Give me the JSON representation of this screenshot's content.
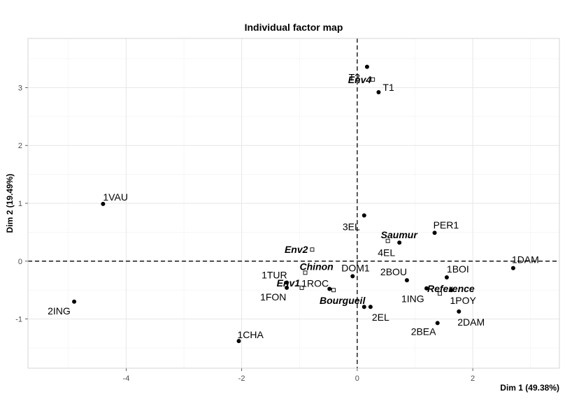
{
  "chart_data": {
    "type": "scatter",
    "title": "Individual factor map",
    "xlabel": "Dim 1 (49.38%)",
    "ylabel": "Dim 2 (19.49%)",
    "xlim": [
      -5.7,
      3.5
    ],
    "ylim": [
      -1.85,
      3.85
    ],
    "x_ticks": [
      -4,
      -2,
      0,
      2
    ],
    "x_tick_labels": [
      "-4",
      "-2",
      "0",
      "2"
    ],
    "y_ticks": [
      -1,
      0,
      1,
      2,
      3
    ],
    "y_tick_labels": [
      "-1",
      "0",
      "1",
      "2",
      "3"
    ],
    "grid": true,
    "reference_lines": {
      "x": 0,
      "y": 0
    },
    "series": [
      {
        "kind": "individuals",
        "marker": "filled-circle",
        "points": [
          {
            "label": "T2",
            "x": 0.17,
            "y": 3.36
          },
          {
            "label": "T1",
            "x": 0.37,
            "y": 2.92
          },
          {
            "label": "1VAU",
            "x": -4.4,
            "y": 0.99
          },
          {
            "label": "3EL",
            "x": 0.12,
            "y": 0.79
          },
          {
            "label": "PER1",
            "x": 1.34,
            "y": 0.49
          },
          {
            "label": "4EL",
            "x": 0.73,
            "y": 0.32
          },
          {
            "label": "1DAM",
            "x": 2.7,
            "y": -0.12
          },
          {
            "label": "DOM1",
            "x": -0.08,
            "y": -0.26
          },
          {
            "label": "1BOI",
            "x": 1.55,
            "y": -0.28
          },
          {
            "label": "2BOU",
            "x": 0.86,
            "y": -0.33
          },
          {
            "label": "1TUR",
            "x": -1.22,
            "y": -0.37
          },
          {
            "label": "1ROC",
            "x": -0.48,
            "y": -0.48
          },
          {
            "label": "1FON",
            "x": -1.22,
            "y": -0.46
          },
          {
            "label": "1ING",
            "x": 1.2,
            "y": -0.47
          },
          {
            "label": "1POY",
            "x": 1.63,
            "y": -0.5
          },
          {
            "label": "2ING",
            "x": -4.9,
            "y": -0.7
          },
          {
            "label": "2EL",
            "x": 0.23,
            "y": -0.79
          },
          {
            "label": "Bourgueil",
            "x": 0.12,
            "y": -0.79
          },
          {
            "label": "2DAM",
            "x": 1.76,
            "y": -0.87
          },
          {
            "label": "2BEA",
            "x": 1.39,
            "y": -1.07
          },
          {
            "label": "1CHA",
            "x": -2.05,
            "y": -1.38
          }
        ]
      },
      {
        "kind": "supplementary",
        "marker": "open-square",
        "points": [
          {
            "label": "Env4",
            "x": 0.27,
            "y": 3.14
          },
          {
            "label": "Saumur",
            "x": 0.53,
            "y": 0.35
          },
          {
            "label": "Env2",
            "x": -0.78,
            "y": 0.2
          },
          {
            "label": "Chinon",
            "x": -0.9,
            "y": -0.2
          },
          {
            "label": "Env1",
            "x": -0.96,
            "y": -0.46
          },
          {
            "label": "Reference",
            "x": 1.43,
            "y": -0.56
          },
          {
            "label": "Bourgueil",
            "x": -0.41,
            "y": -0.5
          }
        ]
      }
    ]
  }
}
